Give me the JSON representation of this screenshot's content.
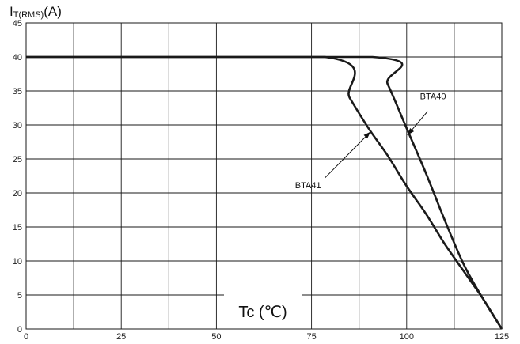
{
  "chart_data": {
    "type": "line",
    "title": "",
    "ylabel_main": "I",
    "ylabel_sub": "T(RMS)",
    "ylabel_unit": "(A)",
    "xlabel": "Tc (℃)",
    "xlim": [
      0,
      125
    ],
    "ylim": [
      0,
      45
    ],
    "xticks": [
      0,
      25,
      50,
      75,
      100,
      125
    ],
    "yticks": [
      0,
      5,
      10,
      15,
      20,
      25,
      30,
      35,
      40,
      45
    ],
    "grid": true,
    "series": [
      {
        "name": "BTA40",
        "x": [
          0,
          91,
          95,
          100,
          105,
          110,
          115,
          120,
          125
        ],
        "y": [
          40,
          40,
          36,
          29.5,
          23,
          16,
          9.5,
          4.5,
          0
        ]
      },
      {
        "name": "BTA41",
        "x": [
          0,
          78.5,
          85,
          90,
          95,
          100,
          105,
          110,
          115,
          120,
          125
        ],
        "y": [
          40,
          40,
          34,
          29.5,
          25.5,
          21,
          17,
          12.5,
          8.5,
          4.5,
          0
        ]
      }
    ],
    "annotations": [
      {
        "text": "BTA40",
        "series": "BTA40"
      },
      {
        "text": "BTA41",
        "series": "BTA41"
      }
    ],
    "colors": {
      "line": "#1a1a1a",
      "grid": "#1a1a1a",
      "background": "#ffffff"
    }
  }
}
